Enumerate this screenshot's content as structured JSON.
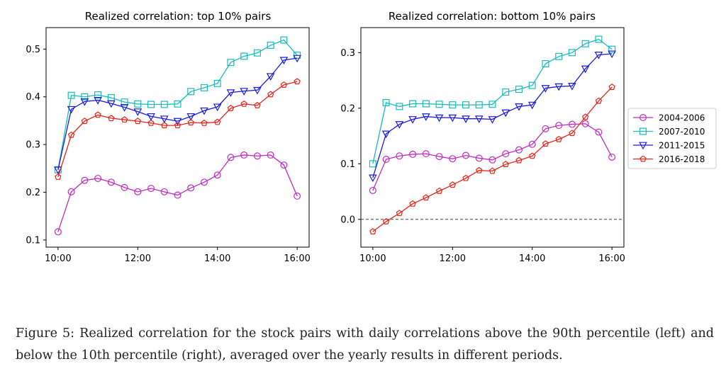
{
  "caption": "Figure 5: Realized correlation for the stock pairs with daily correlations above the 90th percentile (left) and below the 10th percentile (right), averaged over the yearly results in different periods.",
  "colors": {
    "2004-2006": "#c02bc0",
    "2007-2010": "#17bcbc",
    "2011-2015": "#1a1ae6",
    "2016-2018": "#e8231a",
    "zero_line": "#444444"
  },
  "chart_data": [
    {
      "type": "line",
      "title": "Realized correlation: top 10% pairs",
      "x": [
        "10:00",
        "10:20",
        "10:40",
        "11:00",
        "11:20",
        "11:40",
        "12:00",
        "12:20",
        "12:40",
        "13:00",
        "13:20",
        "13:40",
        "14:00",
        "14:20",
        "14:40",
        "15:00",
        "15:20",
        "15:40",
        "16:00"
      ],
      "xticks": [
        "10:00",
        "12:00",
        "14:00",
        "16:00"
      ],
      "yticks": [
        "0.1",
        "0.2",
        "0.3",
        "0.4",
        "0.5"
      ],
      "ylim": [
        0.085,
        0.545
      ],
      "grid": false,
      "series": [
        {
          "name": "2004-2006",
          "marker": "circle",
          "values": [
            0.117,
            0.201,
            0.225,
            0.229,
            0.221,
            0.21,
            0.201,
            0.208,
            0.201,
            0.194,
            0.209,
            0.221,
            0.236,
            0.273,
            0.278,
            0.276,
            0.278,
            0.257,
            0.192
          ]
        },
        {
          "name": "2007-2010",
          "marker": "square",
          "values": [
            0.247,
            0.403,
            0.4,
            0.404,
            0.398,
            0.389,
            0.385,
            0.384,
            0.384,
            0.385,
            0.411,
            0.419,
            0.428,
            0.472,
            0.485,
            0.492,
            0.508,
            0.519,
            0.487
          ]
        },
        {
          "name": "2011-2015",
          "marker": "triangle-down",
          "values": [
            0.247,
            0.374,
            0.39,
            0.393,
            0.386,
            0.378,
            0.369,
            0.359,
            0.354,
            0.349,
            0.359,
            0.371,
            0.379,
            0.409,
            0.412,
            0.414,
            0.443,
            0.477,
            0.481
          ]
        },
        {
          "name": "2016-2018",
          "marker": "pentagon",
          "values": [
            0.232,
            0.32,
            0.349,
            0.362,
            0.355,
            0.352,
            0.349,
            0.345,
            0.34,
            0.34,
            0.346,
            0.345,
            0.347,
            0.376,
            0.385,
            0.382,
            0.405,
            0.425,
            0.432
          ]
        }
      ]
    },
    {
      "type": "line",
      "title": "Realized correlation: bottom 10% pairs",
      "x": [
        "10:00",
        "10:20",
        "10:40",
        "11:00",
        "11:20",
        "11:40",
        "12:00",
        "12:20",
        "12:40",
        "13:00",
        "13:20",
        "13:40",
        "14:00",
        "14:20",
        "14:40",
        "15:00",
        "15:20",
        "15:40",
        "16:00"
      ],
      "xticks": [
        "10:00",
        "12:00",
        "14:00",
        "16:00"
      ],
      "yticks": [
        "0.0",
        "0.1",
        "0.2",
        "0.3"
      ],
      "ylim": [
        -0.05,
        0.345
      ],
      "grid": false,
      "hline": 0.0,
      "legend": "outside-right",
      "series": [
        {
          "name": "2004-2006",
          "marker": "circle",
          "values": [
            0.052,
            0.108,
            0.114,
            0.117,
            0.118,
            0.113,
            0.109,
            0.115,
            0.11,
            0.107,
            0.118,
            0.125,
            0.135,
            0.163,
            0.169,
            0.171,
            0.172,
            0.157,
            0.112
          ]
        },
        {
          "name": "2007-2010",
          "marker": "square",
          "values": [
            0.1,
            0.21,
            0.203,
            0.208,
            0.208,
            0.207,
            0.206,
            0.206,
            0.206,
            0.207,
            0.229,
            0.234,
            0.241,
            0.28,
            0.293,
            0.3,
            0.316,
            0.324,
            0.306
          ]
        },
        {
          "name": "2011-2015",
          "marker": "triangle-down",
          "values": [
            0.075,
            0.154,
            0.171,
            0.18,
            0.185,
            0.183,
            0.183,
            0.181,
            0.181,
            0.18,
            0.192,
            0.203,
            0.206,
            0.236,
            0.239,
            0.24,
            0.271,
            0.296,
            0.298
          ]
        },
        {
          "name": "2016-2018",
          "marker": "pentagon",
          "values": [
            -0.022,
            -0.004,
            0.011,
            0.028,
            0.039,
            0.051,
            0.062,
            0.074,
            0.088,
            0.087,
            0.099,
            0.106,
            0.114,
            0.136,
            0.144,
            0.155,
            0.184,
            0.213,
            0.238
          ]
        }
      ]
    }
  ]
}
